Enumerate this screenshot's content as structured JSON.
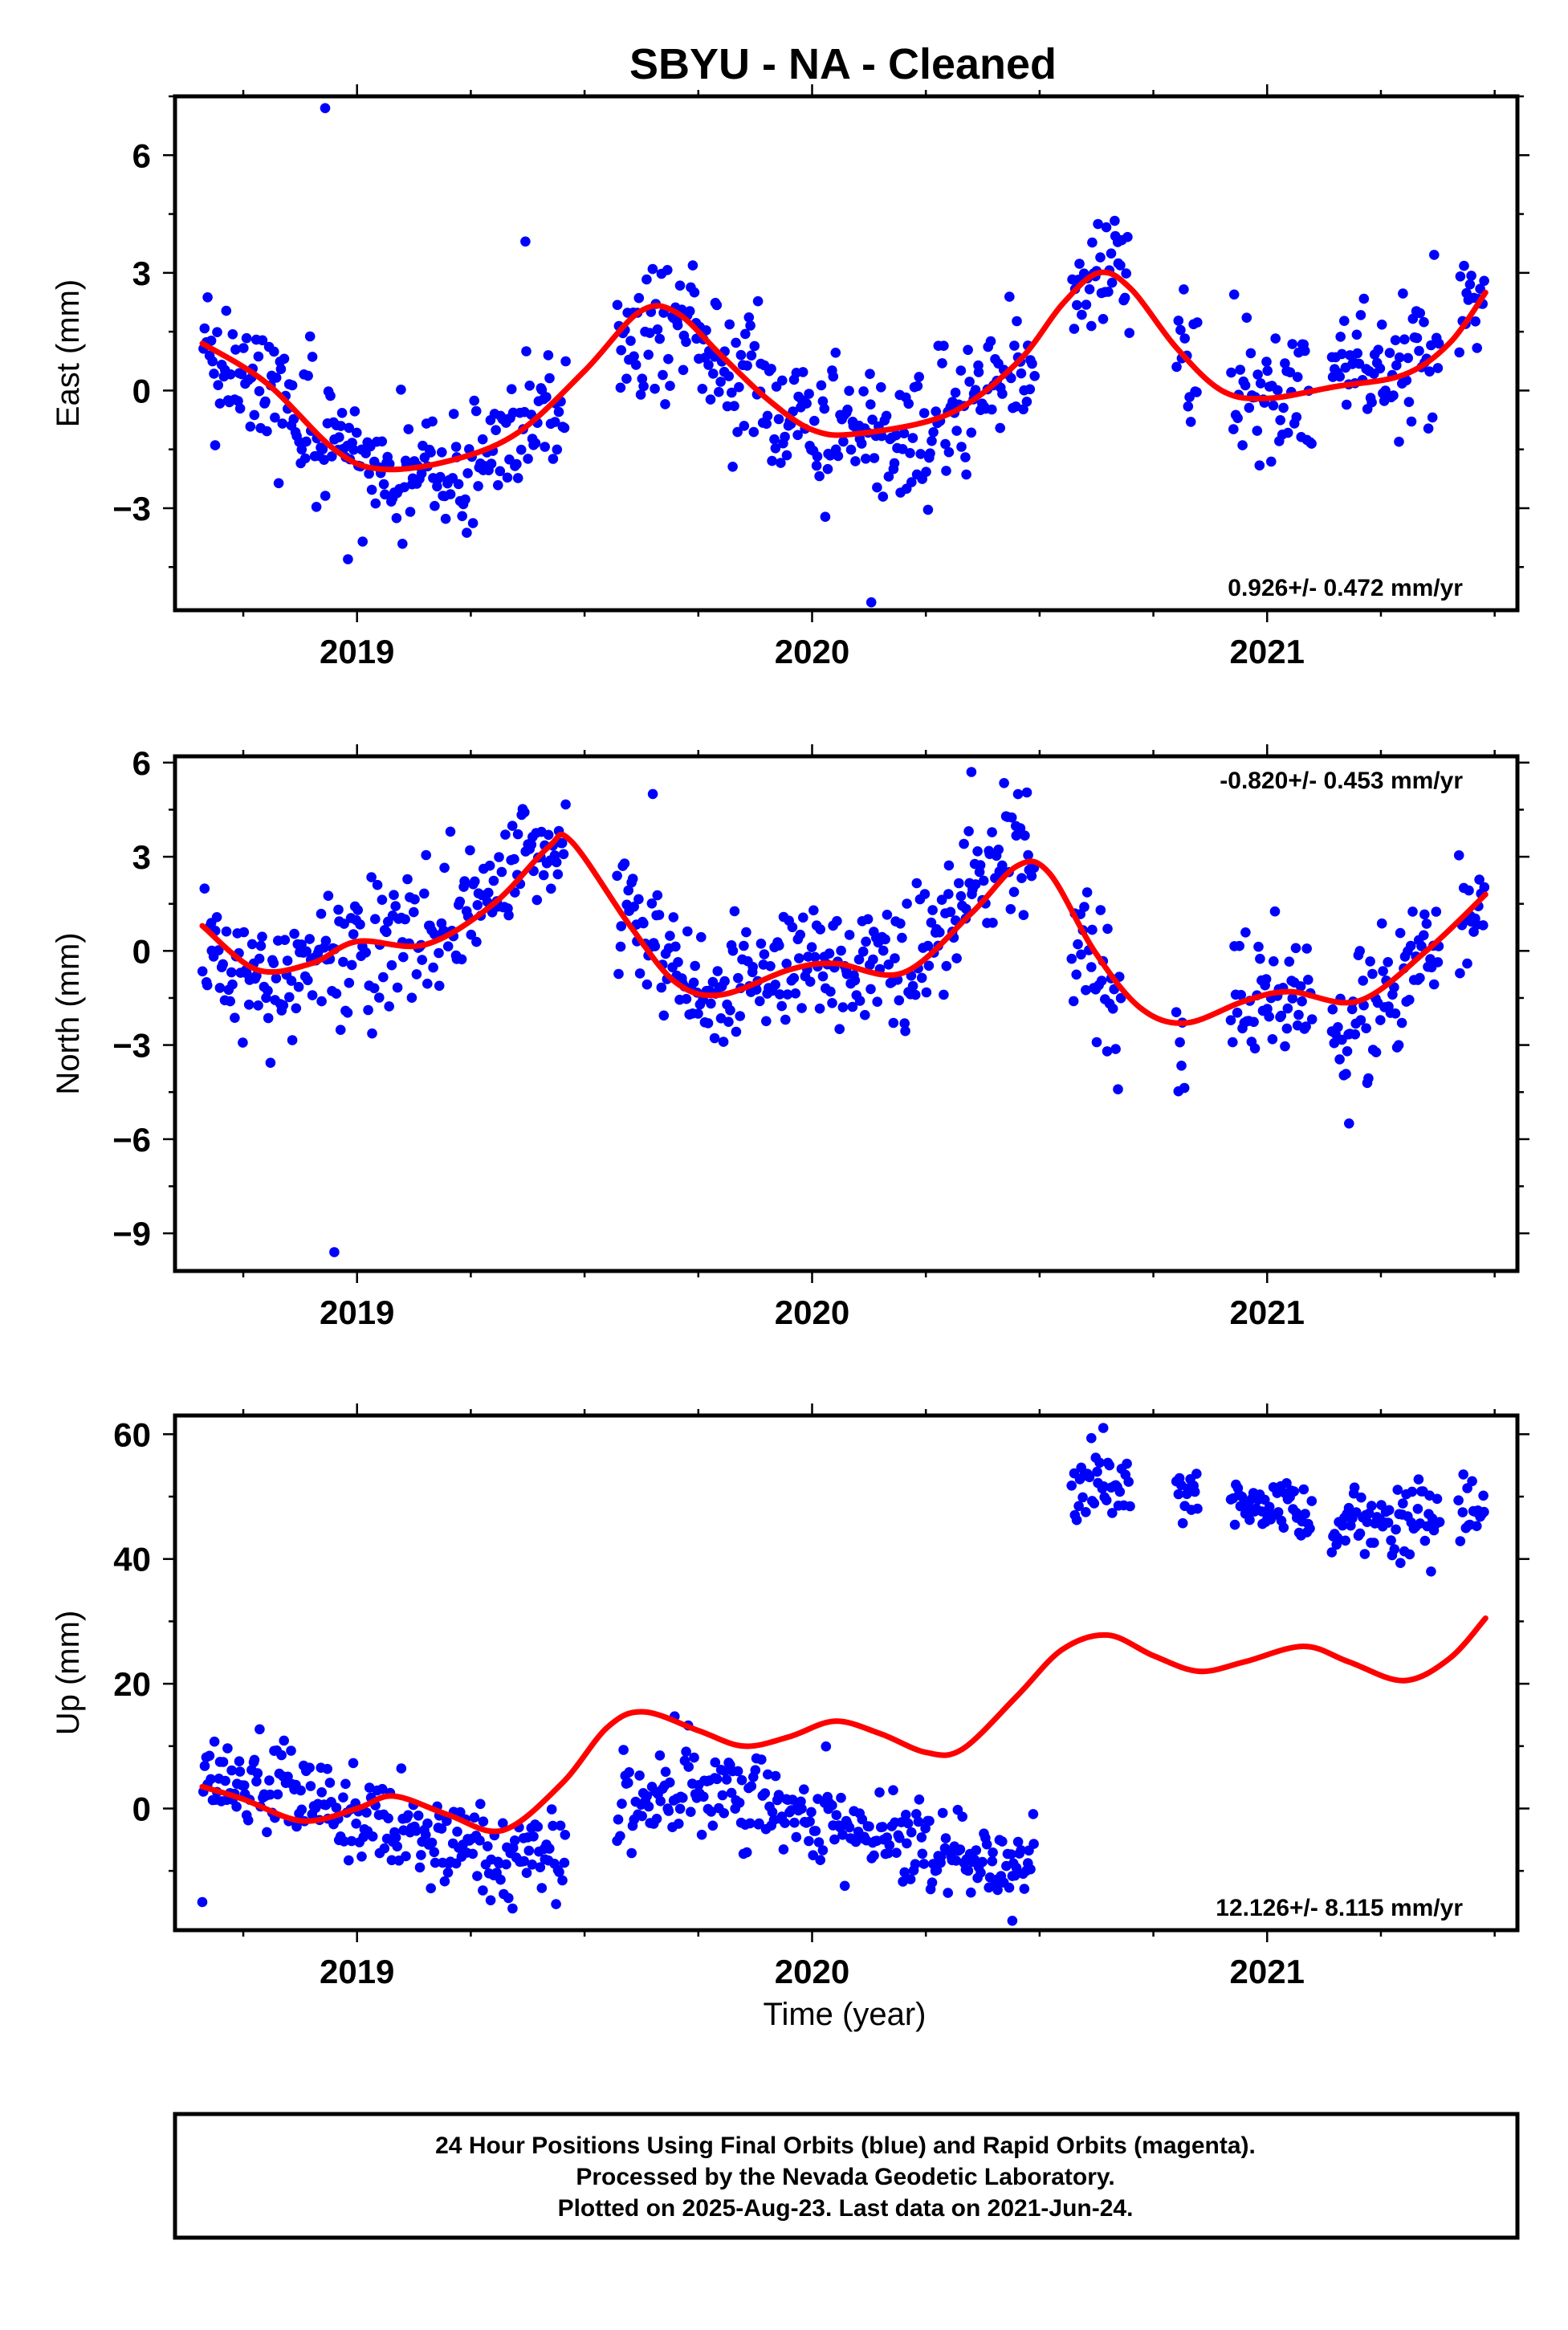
{
  "figure": {
    "title": "SBYU  - NA - Cleaned",
    "xlabel": "Time (year)",
    "colors": {
      "data": "#0000ff",
      "model": "#ff0000",
      "frame": "#000000"
    }
  },
  "footer": {
    "line1": "24 Hour Positions Using Final Orbits (blue) and Rapid Orbits (magenta).",
    "line2": "Processed by the Nevada Geodetic Laboratory.",
    "line3": "Plotted on 2025-Aug-23. Last data on 2021-Jun-24."
  },
  "chart_data": [
    {
      "type": "scatter",
      "name": "east",
      "ylabel": "East (mm)",
      "rate": "0.926+/- 0.472 mm/yr",
      "rate_position": "bottom-right",
      "xlim": [
        2018.6,
        2021.55
      ],
      "ylim": [
        -5.6,
        7.5
      ],
      "xticks": [
        2019,
        2020,
        2021
      ],
      "xtick_labels": [
        "2019",
        "2020",
        "2021"
      ],
      "yticks": [
        -3,
        0,
        3,
        6
      ],
      "ytick_labels": [
        "−3",
        "0",
        "3",
        "6"
      ],
      "grid": false,
      "segments": [
        {
          "start": 2018.66,
          "end": 2019.46,
          "trend": [
            [
              2018.66,
              1.1
            ],
            [
              2018.85,
              -0.3
            ],
            [
              2019.02,
              -2.0
            ],
            [
              2019.25,
              -1.8
            ],
            [
              2019.46,
              -0.3
            ]
          ],
          "scatter": 0.85
        },
        {
          "start": 2019.57,
          "end": 2020.49,
          "trend": [
            [
              2019.57,
              1.2
            ],
            [
              2019.7,
              2.0
            ],
            [
              2019.85,
              0.4
            ],
            [
              2020.0,
              -1.0
            ],
            [
              2020.2,
              -1.3
            ],
            [
              2020.49,
              0.5
            ]
          ],
          "scatter": 0.95
        },
        {
          "start": 2020.57,
          "end": 2020.7,
          "trend": [
            [
              2020.57,
              2.6
            ],
            [
              2020.7,
              3.3
            ]
          ],
          "scatter": 0.7
        },
        {
          "start": 2020.8,
          "end": 2020.85,
          "trend": [
            [
              2020.8,
              1.0
            ],
            [
              2020.85,
              0.4
            ]
          ],
          "scatter": 0.8
        },
        {
          "start": 2020.92,
          "end": 2021.1,
          "trend": [
            [
              2020.92,
              0.3
            ],
            [
              2021.1,
              0.0
            ]
          ],
          "scatter": 0.8
        },
        {
          "start": 2021.14,
          "end": 2021.38,
          "trend": [
            [
              2021.14,
              0.4
            ],
            [
              2021.38,
              1.0
            ]
          ],
          "scatter": 0.7
        },
        {
          "start": 2021.42,
          "end": 2021.48,
          "trend": [
            [
              2021.42,
              2.3
            ],
            [
              2021.48,
              2.4
            ]
          ],
          "scatter": 0.5
        }
      ],
      "outliers": [
        [
          2018.93,
          7.2
        ],
        [
          2020.13,
          -5.4
        ],
        [
          2018.98,
          -4.3
        ],
        [
          2019.37,
          3.8
        ]
      ],
      "model": [
        [
          2018.66,
          1.2
        ],
        [
          2018.8,
          0.2
        ],
        [
          2018.95,
          -1.5
        ],
        [
          2019.05,
          -2.0
        ],
        [
          2019.2,
          -1.8
        ],
        [
          2019.35,
          -1.1
        ],
        [
          2019.5,
          0.5
        ],
        [
          2019.62,
          2.0
        ],
        [
          2019.7,
          2.0
        ],
        [
          2019.8,
          0.9
        ],
        [
          2019.9,
          -0.2
        ],
        [
          2020.0,
          -1.0
        ],
        [
          2020.1,
          -1.1
        ],
        [
          2020.3,
          -0.6
        ],
        [
          2020.45,
          0.7
        ],
        [
          2020.55,
          2.2
        ],
        [
          2020.63,
          3.0
        ],
        [
          2020.7,
          2.6
        ],
        [
          2020.8,
          1.1
        ],
        [
          2020.9,
          0.0
        ],
        [
          2021.0,
          -0.2
        ],
        [
          2021.15,
          0.1
        ],
        [
          2021.3,
          0.4
        ],
        [
          2021.4,
          1.2
        ],
        [
          2021.48,
          2.5
        ]
      ]
    },
    {
      "type": "scatter",
      "name": "north",
      "ylabel": "North (mm)",
      "rate": "-0.820+/- 0.453 mm/yr",
      "rate_position": "top-right",
      "xlim": [
        2018.6,
        2021.55
      ],
      "ylim": [
        -10.2,
        6.2
      ],
      "xticks": [
        2019,
        2020,
        2021
      ],
      "xtick_labels": [
        "2019",
        "2020",
        "2021"
      ],
      "yticks": [
        -9,
        -6,
        -3,
        0,
        3,
        6
      ],
      "ytick_labels": [
        "−9",
        "−6",
        "−3",
        "0",
        "3",
        "6"
      ],
      "grid": false,
      "segments": [
        {
          "start": 2018.66,
          "end": 2019.46,
          "trend": [
            [
              2018.66,
              0.2
            ],
            [
              2018.8,
              -1.2
            ],
            [
              2019.0,
              0.2
            ],
            [
              2019.2,
              0.8
            ],
            [
              2019.35,
              2.5
            ],
            [
              2019.46,
              3.3
            ]
          ],
          "scatter": 1.0
        },
        {
          "start": 2019.57,
          "end": 2020.49,
          "trend": [
            [
              2019.57,
              1.8
            ],
            [
              2019.75,
              -1.5
            ],
            [
              2019.9,
              -0.5
            ],
            [
              2020.1,
              -0.5
            ],
            [
              2020.25,
              0.0
            ],
            [
              2020.35,
              2.0
            ],
            [
              2020.49,
              3.5
            ]
          ],
          "scatter": 1.0
        },
        {
          "start": 2020.57,
          "end": 2020.68,
          "trend": [
            [
              2020.57,
              0.5
            ],
            [
              2020.68,
              -1.5
            ]
          ],
          "scatter": 1.2
        },
        {
          "start": 2020.8,
          "end": 2020.82,
          "trend": [
            [
              2020.8,
              -3.5
            ],
            [
              2020.82,
              -4.5
            ]
          ],
          "scatter": 0.8
        },
        {
          "start": 2020.92,
          "end": 2021.1,
          "trend": [
            [
              2020.92,
              -2.0
            ],
            [
              2021.1,
              -1.0
            ]
          ],
          "scatter": 0.9
        },
        {
          "start": 2021.14,
          "end": 2021.38,
          "trend": [
            [
              2021.14,
              -2.5
            ],
            [
              2021.38,
              0.0
            ]
          ],
          "scatter": 1.1
        },
        {
          "start": 2021.42,
          "end": 2021.48,
          "trend": [
            [
              2021.42,
              1.5
            ],
            [
              2021.48,
              1.5
            ]
          ],
          "scatter": 0.8
        }
      ],
      "outliers": [
        [
          2018.95,
          -9.6
        ],
        [
          2019.65,
          5.0
        ],
        [
          2020.35,
          5.7
        ],
        [
          2021.18,
          -5.5
        ]
      ],
      "model": [
        [
          2018.66,
          0.8
        ],
        [
          2018.78,
          -0.6
        ],
        [
          2018.9,
          -0.4
        ],
        [
          2019.0,
          0.3
        ],
        [
          2019.15,
          0.2
        ],
        [
          2019.3,
          1.5
        ],
        [
          2019.42,
          3.3
        ],
        [
          2019.47,
          3.5
        ],
        [
          2019.6,
          0.8
        ],
        [
          2019.7,
          -1.0
        ],
        [
          2019.8,
          -1.4
        ],
        [
          2019.95,
          -0.6
        ],
        [
          2020.05,
          -0.4
        ],
        [
          2020.2,
          -0.7
        ],
        [
          2020.35,
          1.2
        ],
        [
          2020.45,
          2.7
        ],
        [
          2020.52,
          2.5
        ],
        [
          2020.62,
          0.0
        ],
        [
          2020.72,
          -1.8
        ],
        [
          2020.82,
          -2.3
        ],
        [
          2020.95,
          -1.6
        ],
        [
          2021.05,
          -1.3
        ],
        [
          2021.2,
          -1.6
        ],
        [
          2021.35,
          0.0
        ],
        [
          2021.48,
          1.8
        ]
      ]
    },
    {
      "type": "scatter",
      "name": "up",
      "ylabel": "Up (mm)",
      "rate": "12.126+/- 8.115 mm/yr",
      "rate_position": "bottom-right",
      "xlim": [
        2018.6,
        2021.55
      ],
      "ylim": [
        -19.5,
        63
      ],
      "xticks": [
        2019,
        2020,
        2021
      ],
      "xtick_labels": [
        "2019",
        "2020",
        "2021"
      ],
      "yticks": [
        0,
        20,
        40,
        60
      ],
      "ytick_labels": [
        "0",
        "20",
        "40",
        "60"
      ],
      "grid": false,
      "segments": [
        {
          "start": 2018.66,
          "end": 2019.46,
          "trend": [
            [
              2018.66,
              5.0
            ],
            [
              2018.8,
              4.0
            ],
            [
              2018.95,
              0.0
            ],
            [
              2019.1,
              -4.0
            ],
            [
              2019.25,
              -7.0
            ],
            [
              2019.46,
              -6.0
            ]
          ],
          "scatter": 3.5
        },
        {
          "start": 2019.57,
          "end": 2020.49,
          "trend": [
            [
              2019.57,
              1.0
            ],
            [
              2019.72,
              3.0
            ],
            [
              2019.9,
              0.0
            ],
            [
              2020.1,
              -4.0
            ],
            [
              2020.3,
              -7.0
            ],
            [
              2020.49,
              -9.0
            ]
          ],
          "scatter": 3.5
        },
        {
          "start": 2020.57,
          "end": 2020.7,
          "trend": [
            [
              2020.57,
              50.0
            ],
            [
              2020.7,
              52.0
            ]
          ],
          "scatter": 4.0
        },
        {
          "start": 2020.8,
          "end": 2020.85,
          "trend": [
            [
              2020.8,
              52.0
            ],
            [
              2020.85,
              50.0
            ]
          ],
          "scatter": 2.5
        },
        {
          "start": 2020.92,
          "end": 2021.1,
          "trend": [
            [
              2020.92,
              49.0
            ],
            [
              2021.1,
              47.0
            ]
          ],
          "scatter": 2.2
        },
        {
          "start": 2021.14,
          "end": 2021.38,
          "trend": [
            [
              2021.14,
              46.0
            ],
            [
              2021.38,
              45.0
            ]
          ],
          "scatter": 3.0
        },
        {
          "start": 2021.42,
          "end": 2021.48,
          "trend": [
            [
              2021.42,
              47.0
            ],
            [
              2021.48,
              48.0
            ]
          ],
          "scatter": 3.0
        }
      ],
      "outliers": [
        [
          2018.66,
          -15.0
        ],
        [
          2020.64,
          61.0
        ],
        [
          2020.44,
          -18.0
        ]
      ],
      "model": [
        [
          2018.66,
          3.5
        ],
        [
          2018.75,
          1.5
        ],
        [
          2018.88,
          -2.0
        ],
        [
          2019.0,
          0.0
        ],
        [
          2019.08,
          2.0
        ],
        [
          2019.2,
          -1.0
        ],
        [
          2019.32,
          -3.5
        ],
        [
          2019.45,
          4.0
        ],
        [
          2019.55,
          13.0
        ],
        [
          2019.63,
          15.5
        ],
        [
          2019.75,
          12.5
        ],
        [
          2019.85,
          10.0
        ],
        [
          2019.95,
          11.5
        ],
        [
          2020.05,
          14.0
        ],
        [
          2020.15,
          12.0
        ],
        [
          2020.25,
          9.0
        ],
        [
          2020.33,
          9.5
        ],
        [
          2020.45,
          18.0
        ],
        [
          2020.55,
          25.5
        ],
        [
          2020.65,
          27.8
        ],
        [
          2020.75,
          24.5
        ],
        [
          2020.85,
          22.0
        ],
        [
          2020.95,
          23.5
        ],
        [
          2021.08,
          26.0
        ],
        [
          2021.18,
          23.5
        ],
        [
          2021.3,
          20.5
        ],
        [
          2021.4,
          24.0
        ],
        [
          2021.48,
          30.5
        ]
      ]
    }
  ]
}
